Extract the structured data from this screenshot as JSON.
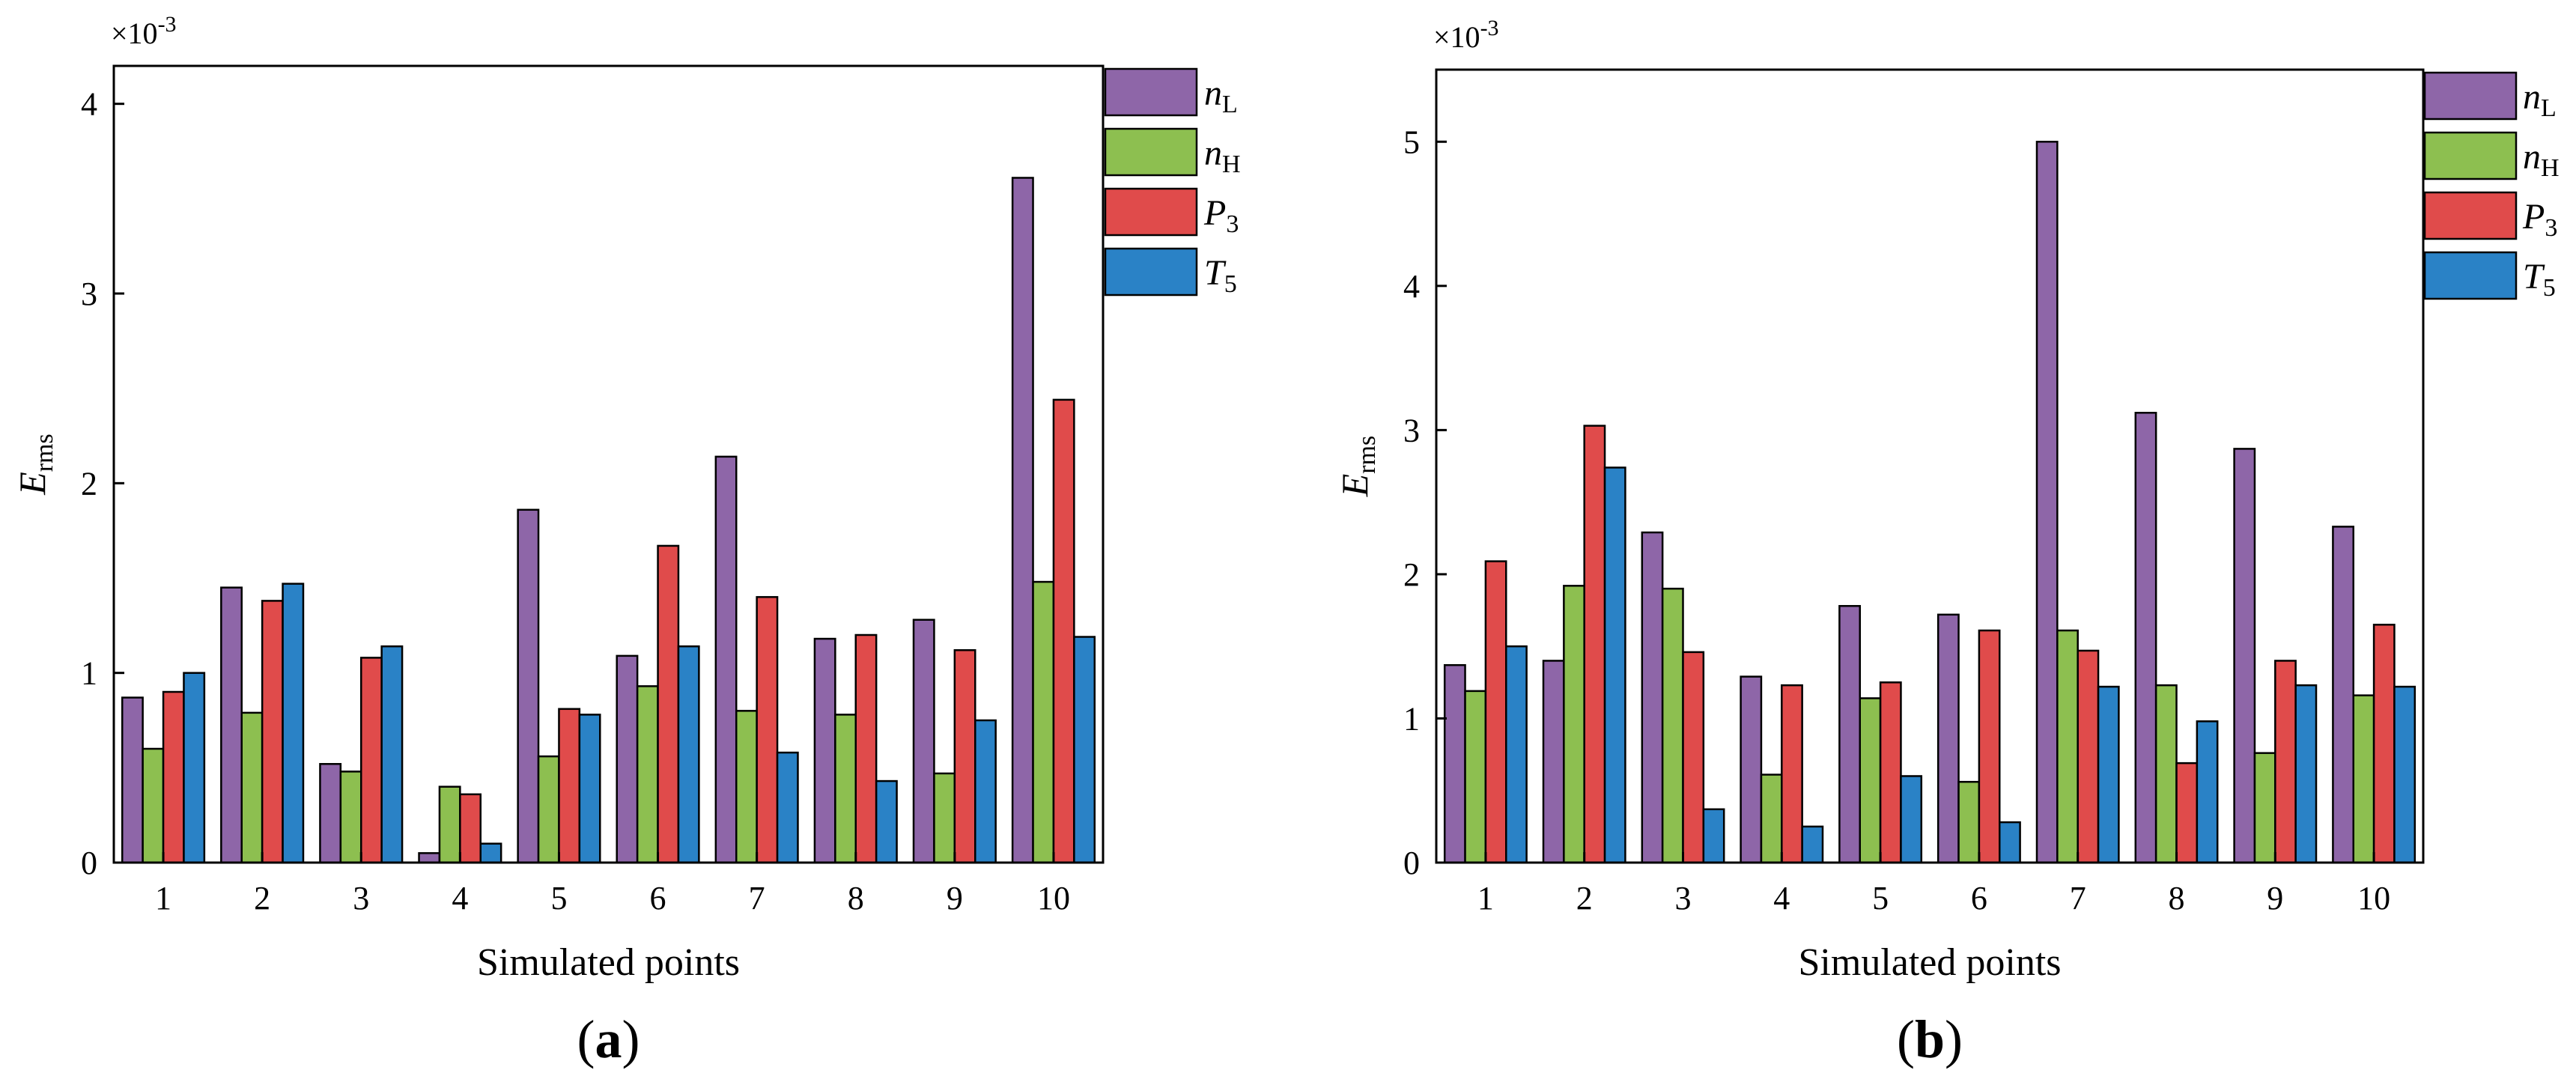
{
  "colors": {
    "nL": "#8E66A8",
    "nH": "#8DBF50",
    "P3": "#E04B4B",
    "T5": "#2A82C6"
  },
  "legend": [
    {
      "key": "nL",
      "base": "n",
      "sub": "L",
      "italic": true
    },
    {
      "key": "nH",
      "base": "n",
      "sub": "H",
      "italic": true
    },
    {
      "key": "P3",
      "base": "P",
      "sub": "3",
      "italic": true
    },
    {
      "key": "T5",
      "base": "T",
      "sub": "5",
      "italic": true
    }
  ],
  "chart_data": [
    {
      "type": "bar",
      "panel_label": "(a)",
      "panel_letter": "a",
      "title": "",
      "xlabel": "Simulated points",
      "ylabel_base": "E",
      "ylabel_sub": "rms",
      "exponent_label": "×10",
      "exponent": "-3",
      "categories": [
        "1",
        "2",
        "3",
        "4",
        "5",
        "6",
        "7",
        "8",
        "9",
        "10"
      ],
      "ylim": [
        0,
        4.2
      ],
      "yticks": [
        0,
        1,
        2,
        3,
        4
      ],
      "legend_position": "right",
      "series": [
        {
          "name": "nL",
          "values": [
            0.87,
            1.45,
            0.52,
            0.05,
            1.86,
            1.09,
            2.14,
            1.18,
            1.28,
            3.61
          ]
        },
        {
          "name": "nH",
          "values": [
            0.6,
            0.79,
            0.48,
            0.4,
            0.56,
            0.93,
            0.8,
            0.78,
            0.47,
            1.48
          ]
        },
        {
          "name": "P3",
          "values": [
            0.9,
            1.38,
            1.08,
            0.36,
            0.81,
            1.67,
            1.4,
            1.2,
            1.12,
            2.44
          ]
        },
        {
          "name": "T5",
          "values": [
            1.0,
            1.47,
            1.14,
            0.1,
            0.78,
            1.14,
            0.58,
            0.43,
            0.75,
            1.19
          ]
        }
      ]
    },
    {
      "type": "bar",
      "panel_label": "(b)",
      "panel_letter": "b",
      "title": "",
      "xlabel": "Simulated points",
      "ylabel_base": "E",
      "ylabel_sub": "rms",
      "exponent_label": "×10",
      "exponent": "-3",
      "categories": [
        "1",
        "2",
        "3",
        "4",
        "5",
        "6",
        "7",
        "8",
        "9",
        "10"
      ],
      "ylim": [
        0,
        5.5
      ],
      "yticks": [
        0,
        1,
        2,
        3,
        4,
        5
      ],
      "legend_position": "right",
      "series": [
        {
          "name": "nL",
          "values": [
            1.37,
            1.4,
            2.29,
            1.29,
            1.78,
            1.72,
            5.0,
            3.12,
            2.87,
            2.33
          ]
        },
        {
          "name": "nH",
          "values": [
            1.19,
            1.92,
            1.9,
            0.61,
            1.14,
            0.56,
            1.61,
            1.23,
            0.76,
            1.16
          ]
        },
        {
          "name": "P3",
          "values": [
            2.09,
            3.03,
            1.46,
            1.23,
            1.25,
            1.61,
            1.47,
            0.69,
            1.4,
            1.65
          ]
        },
        {
          "name": "T5",
          "values": [
            1.5,
            2.74,
            0.37,
            0.25,
            0.6,
            0.28,
            1.22,
            0.98,
            1.23,
            1.22
          ]
        }
      ]
    }
  ]
}
